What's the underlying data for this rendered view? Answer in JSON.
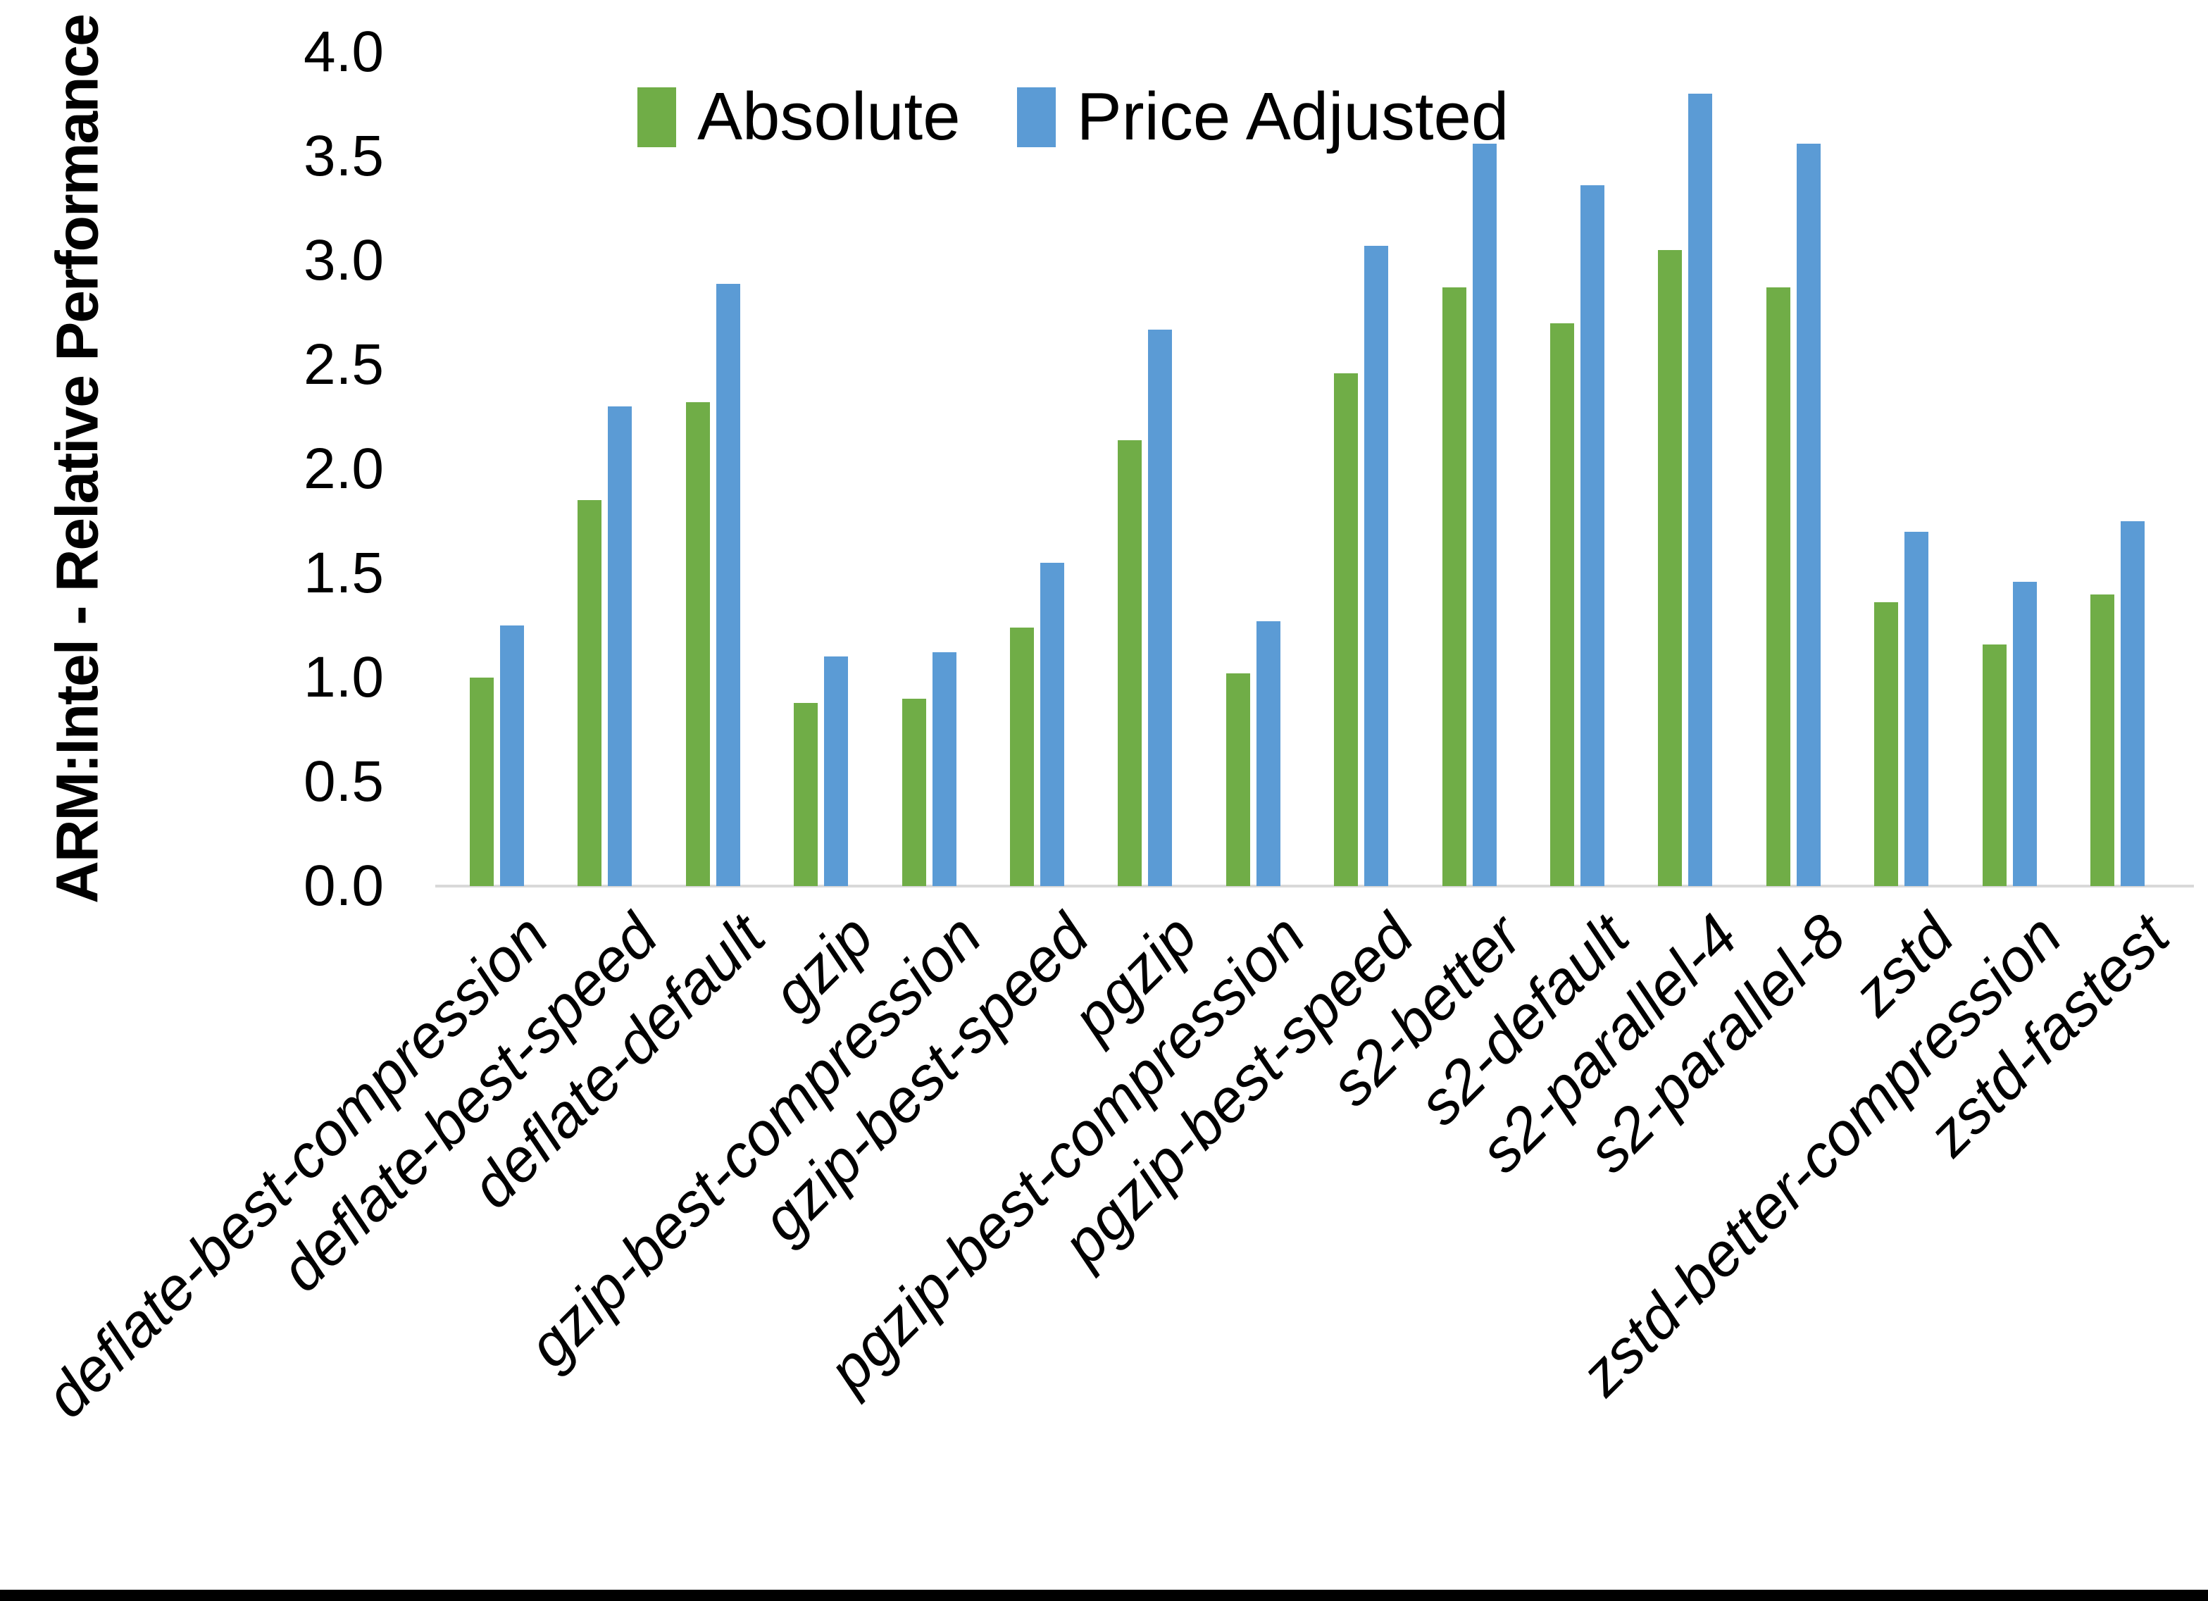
{
  "chart_data": {
    "type": "bar",
    "title": "",
    "xlabel": "",
    "ylabel": "ARM:Intel - Relative Performance",
    "ylim": [
      0.0,
      4.0
    ],
    "ytick_step": 0.5,
    "ytick_labels": [
      "0.0",
      "0.5",
      "1.0",
      "1.5",
      "2.0",
      "2.5",
      "3.0",
      "3.5",
      "4.0"
    ],
    "grid": false,
    "legend_position": "top",
    "axis_line_color": "#D9D9D9",
    "text_color": "#000000",
    "categories": [
      "deflate-best-compression",
      "deflate-best-speed",
      "deflate-default",
      "gzip",
      "gzip-best-compression",
      "gzip-best-speed",
      "pgzip",
      "pgzip-best-compression",
      "pgzip-best-speed",
      "s2-better",
      "s2-default",
      "s2-parallel-4",
      "s2-parallel-8",
      "zstd",
      "zstd-better-compression",
      "zstd-fastest"
    ],
    "series": [
      {
        "name": "Absolute",
        "color": "#70AD47",
        "values": [
          1.0,
          1.85,
          2.32,
          0.88,
          0.9,
          1.24,
          2.14,
          1.02,
          2.46,
          2.87,
          2.7,
          3.05,
          2.87,
          1.36,
          1.16,
          1.4
        ]
      },
      {
        "name": "Price Adjusted",
        "color": "#5B9BD5",
        "values": [
          1.25,
          2.3,
          2.89,
          1.1,
          1.12,
          1.55,
          2.67,
          1.27,
          3.07,
          3.56,
          3.36,
          3.8,
          3.56,
          1.7,
          1.46,
          1.75
        ]
      }
    ]
  }
}
